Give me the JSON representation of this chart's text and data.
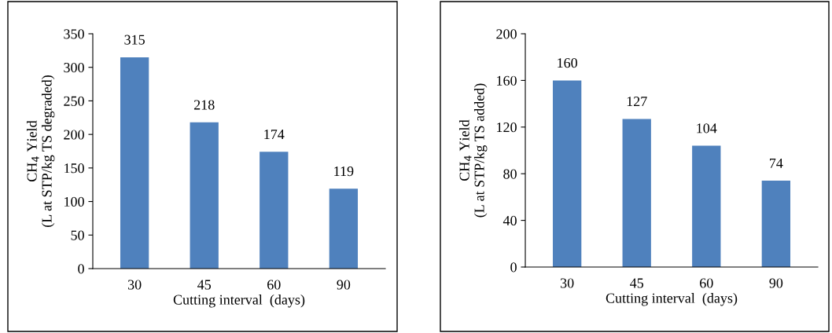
{
  "chart_data": [
    {
      "type": "bar",
      "xlabel": "Cutting interval  (days)",
      "ylabel": "CH$_{4}$ Yield\n(L at STP/kg TS degraded)",
      "categories": [
        "30",
        "45",
        "60",
        "90"
      ],
      "values": [
        315,
        218,
        174,
        119
      ],
      "color": "#4f81bd",
      "ylim": [
        0,
        350
      ],
      "yticks": [
        0,
        50,
        100,
        150,
        200,
        250,
        300,
        350
      ],
      "data_labels": true,
      "grid": false,
      "legend": false
    },
    {
      "type": "bar",
      "xlabel": "Cutting interval  (days)",
      "ylabel": "CH$_{4}$ Yield\n(L at STP/kg TS added)",
      "categories": [
        "30",
        "45",
        "60",
        "90"
      ],
      "values": [
        160,
        127,
        104,
        74
      ],
      "color": "#4f81bd",
      "ylim": [
        0,
        200
      ],
      "yticks": [
        0,
        40,
        80,
        120,
        160,
        200
      ],
      "data_labels": true,
      "grid": false,
      "legend": false
    }
  ]
}
